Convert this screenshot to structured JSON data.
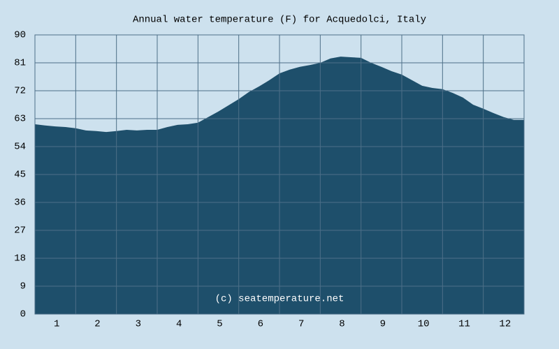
{
  "chart_data": {
    "type": "area",
    "title": "Annual water temperature (F) for Acquedolci, Italy",
    "watermark": "(c) seatemperature.net",
    "color": "#1e4f6b",
    "grid": true,
    "xlim": [
      0.5,
      12.5
    ],
    "xticks": [
      1,
      2,
      3,
      4,
      5,
      6,
      7,
      8,
      9,
      10,
      11,
      12
    ],
    "ylim": [
      0,
      90
    ],
    "yticks": [
      0,
      9,
      18,
      27,
      36,
      45,
      54,
      63,
      72,
      81,
      90
    ],
    "x": [
      0.5,
      0.75,
      1,
      1.25,
      1.5,
      1.75,
      2,
      2.25,
      2.5,
      2.75,
      3,
      3.25,
      3.5,
      3.75,
      4,
      4.25,
      4.5,
      4.75,
      5,
      5.25,
      5.5,
      5.75,
      6,
      6.25,
      6.5,
      6.75,
      7,
      7.25,
      7.5,
      7.75,
      8,
      8.25,
      8.5,
      8.75,
      9,
      9.25,
      9.5,
      9.75,
      10,
      10.25,
      10.5,
      10.75,
      11,
      11.25,
      11.5,
      11.75,
      12,
      12.25,
      12.5
    ],
    "values": [
      61.2,
      60.8,
      60.5,
      60.3,
      59.9,
      59.2,
      59,
      58.7,
      59,
      59.4,
      59.2,
      59.4,
      59.4,
      60.3,
      61,
      61.2,
      61.7,
      63.5,
      65.3,
      67.3,
      69.3,
      71.6,
      73.4,
      75.4,
      77.6,
      78.8,
      79.7,
      80.3,
      81,
      82.4,
      83,
      82.8,
      82.6,
      81,
      79.7,
      78.3,
      77.2,
      75.4,
      73.6,
      72.9,
      72.5,
      71.3,
      69.8,
      67.5,
      66.2,
      64.8,
      63.5,
      62.6,
      62.6
    ]
  }
}
